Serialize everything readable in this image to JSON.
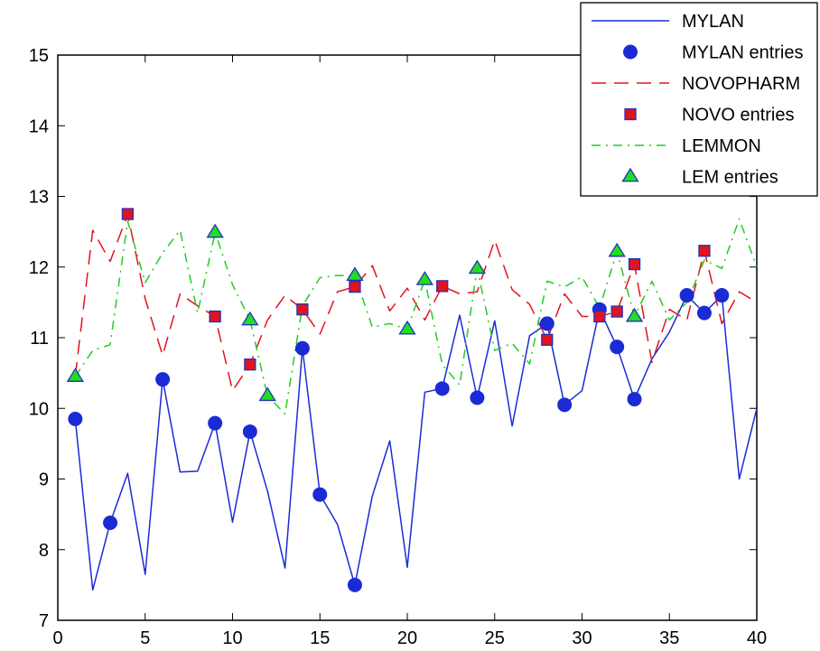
{
  "chart_data": {
    "type": "line",
    "title": "",
    "xlabel": "",
    "ylabel": "",
    "xlim": [
      0,
      40
    ],
    "ylim": [
      7,
      15
    ],
    "xticks": [
      0,
      5,
      10,
      15,
      20,
      25,
      30,
      35,
      40
    ],
    "yticks": [
      7,
      8,
      9,
      10,
      11,
      12,
      13,
      14,
      15
    ],
    "grid": false,
    "legend_position": "top-right",
    "x": [
      1,
      2,
      3,
      4,
      5,
      6,
      7,
      8,
      9,
      10,
      11,
      12,
      13,
      14,
      15,
      16,
      17,
      18,
      19,
      20,
      21,
      22,
      23,
      24,
      25,
      26,
      27,
      28,
      29,
      30,
      31,
      32,
      33,
      34,
      35,
      36,
      37,
      38,
      39,
      40
    ],
    "series": [
      {
        "name": "MYLAN",
        "style": "solid",
        "color": "#1a2bd6",
        "values": [
          9.85,
          7.43,
          8.38,
          9.08,
          7.65,
          10.41,
          9.1,
          9.11,
          9.79,
          8.39,
          9.67,
          8.83,
          7.74,
          10.85,
          8.78,
          8.36,
          7.5,
          8.76,
          9.54,
          7.75,
          10.23,
          10.28,
          11.32,
          10.15,
          11.24,
          9.75,
          11.03,
          11.2,
          10.05,
          10.25,
          11.4,
          10.87,
          10.13,
          10.7,
          11.08,
          11.6,
          11.35,
          11.6,
          9.0,
          10.0
        ]
      },
      {
        "name": "NOVOPHARM",
        "style": "dashed",
        "color": "#e0141e",
        "values": [
          10.45,
          12.52,
          12.08,
          12.75,
          11.55,
          10.75,
          11.62,
          11.45,
          11.3,
          10.25,
          10.62,
          11.25,
          11.6,
          11.4,
          11.05,
          11.65,
          11.72,
          12.02,
          11.38,
          11.7,
          11.25,
          11.73,
          11.62,
          11.65,
          12.38,
          11.68,
          11.47,
          10.97,
          11.62,
          11.3,
          11.3,
          11.37,
          12.04,
          10.65,
          11.4,
          11.25,
          12.23,
          11.2,
          11.65,
          11.5
        ]
      },
      {
        "name": "LEMMON",
        "style": "dash-dot",
        "color": "#22cc22",
        "values": [
          10.45,
          10.82,
          10.9,
          12.65,
          11.78,
          12.2,
          12.52,
          11.35,
          12.49,
          11.75,
          11.25,
          10.18,
          9.92,
          11.45,
          11.85,
          11.88,
          11.88,
          11.15,
          11.2,
          11.12,
          11.82,
          10.62,
          10.33,
          11.98,
          10.82,
          10.92,
          10.63,
          11.8,
          11.72,
          11.86,
          11.42,
          12.22,
          11.3,
          11.8,
          11.25,
          11.5,
          12.1,
          11.98,
          12.68,
          12.0
        ]
      }
    ],
    "markers": [
      {
        "name": "MYLAN entries",
        "shape": "circle",
        "fill": "#1a2bd6",
        "stroke": "#1a2bd6",
        "points": [
          [
            1,
            9.85
          ],
          [
            3,
            8.38
          ],
          [
            6,
            10.41
          ],
          [
            9,
            9.79
          ],
          [
            11,
            9.67
          ],
          [
            14,
            10.85
          ],
          [
            15,
            8.78
          ],
          [
            17,
            7.5
          ],
          [
            22,
            10.28
          ],
          [
            24,
            10.15
          ],
          [
            28,
            11.2
          ],
          [
            29,
            10.05
          ],
          [
            31,
            11.4
          ],
          [
            32,
            10.87
          ],
          [
            33,
            10.13
          ],
          [
            36,
            11.6
          ],
          [
            37,
            11.35
          ],
          [
            38,
            11.6
          ]
        ]
      },
      {
        "name": "NOVO entries",
        "shape": "square",
        "fill": "#e0141e",
        "stroke": "#2233bb",
        "points": [
          [
            4,
            12.75
          ],
          [
            9,
            11.3
          ],
          [
            11,
            10.62
          ],
          [
            14,
            11.4
          ],
          [
            17,
            11.72
          ],
          [
            22,
            11.73
          ],
          [
            28,
            10.97
          ],
          [
            31,
            11.3
          ],
          [
            32,
            11.37
          ],
          [
            33,
            12.04
          ],
          [
            37,
            12.23
          ]
        ]
      },
      {
        "name": "LEM entries",
        "shape": "triangle",
        "fill": "#22dd22",
        "stroke": "#2233bb",
        "points": [
          [
            1,
            10.45
          ],
          [
            9,
            12.49
          ],
          [
            11,
            11.25
          ],
          [
            12,
            10.18
          ],
          [
            17,
            11.88
          ],
          [
            20,
            11.12
          ],
          [
            21,
            11.82
          ],
          [
            24,
            11.98
          ],
          [
            32,
            12.22
          ],
          [
            33,
            11.3
          ]
        ]
      }
    ],
    "legend": [
      {
        "label": "MYLAN",
        "kind": "line",
        "style": "solid",
        "color": "#1a2bd6"
      },
      {
        "label": "MYLAN entries",
        "kind": "marker",
        "shape": "circle",
        "fill": "#1a2bd6",
        "stroke": "#1a2bd6"
      },
      {
        "label": "NOVOPHARM",
        "kind": "line",
        "style": "dashed",
        "color": "#e0141e"
      },
      {
        "label": "NOVO entries",
        "kind": "marker",
        "shape": "square",
        "fill": "#e0141e",
        "stroke": "#2233bb"
      },
      {
        "label": "LEMMON",
        "kind": "line",
        "style": "dash-dot",
        "color": "#22cc22"
      },
      {
        "label": "LEM entries",
        "kind": "marker",
        "shape": "triangle",
        "fill": "#22dd22",
        "stroke": "#2233bb"
      }
    ]
  }
}
